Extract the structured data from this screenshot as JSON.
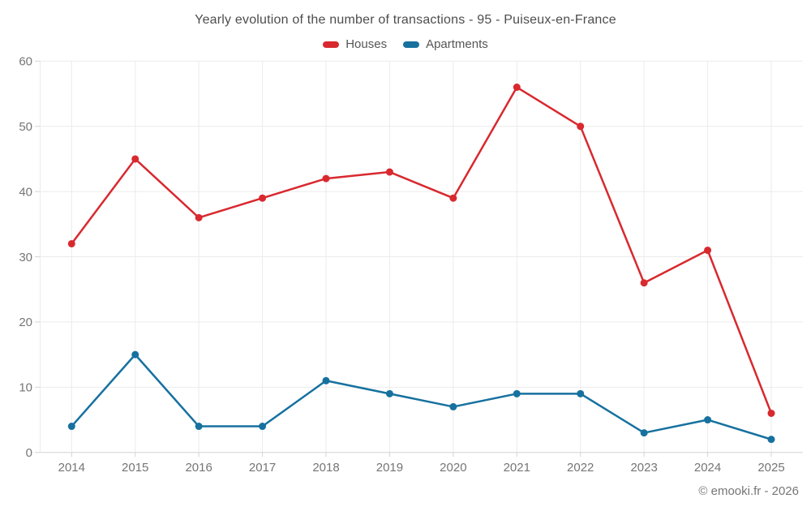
{
  "chart_data": {
    "type": "line",
    "title": "Yearly evolution of the number of transactions - 95 - Puiseux-en-France",
    "categories": [
      "2014",
      "2015",
      "2016",
      "2017",
      "2018",
      "2019",
      "2020",
      "2021",
      "2022",
      "2023",
      "2024",
      "2025"
    ],
    "series": [
      {
        "name": "Houses",
        "color": "#d8292f",
        "values": [
          32,
          45,
          36,
          39,
          42,
          43,
          39,
          56,
          50,
          26,
          31,
          6
        ]
      },
      {
        "name": "Apartments",
        "color": "#16719f",
        "values": [
          4,
          15,
          4,
          4,
          11,
          9,
          7,
          9,
          9,
          3,
          5,
          2
        ]
      }
    ],
    "xlabel": "",
    "ylabel": "",
    "ylim": [
      0,
      60
    ],
    "yticks": [
      0,
      10,
      20,
      30,
      40,
      50,
      60
    ],
    "grid": true,
    "legend_position": "top"
  },
  "footer": {
    "credit": "© emooki.fr - 2026"
  },
  "style": {
    "grid_color": "#ebebeb",
    "axis_color": "#d4d4d4",
    "tick_label_color": "#757575",
    "title_color": "#4d4d4d",
    "legend_label_color": "#555555"
  }
}
